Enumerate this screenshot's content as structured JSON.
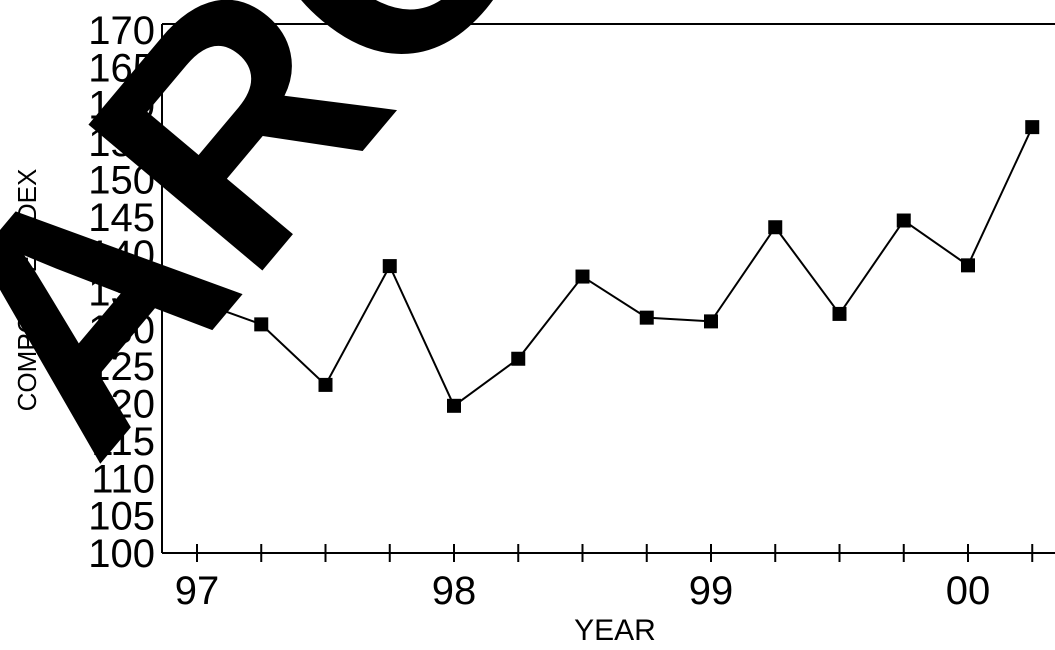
{
  "watermark": {
    "text": "ARCHIVE"
  },
  "chart_data": {
    "type": "line",
    "xlabel": "YEAR",
    "ylabel": "COMPOSITE INDEX",
    "ylim": [
      100,
      170
    ],
    "yticks": [
      100,
      105,
      110,
      115,
      120,
      125,
      130,
      135,
      140,
      145,
      150,
      155,
      160,
      165,
      170
    ],
    "xlim": [
      1997,
      2000.25
    ],
    "x_tick_labels": [
      {
        "value": 1997,
        "label": "97"
      },
      {
        "value": 1998,
        "label": "98"
      },
      {
        "value": 1999,
        "label": "99"
      },
      {
        "value": 2000,
        "label": "00"
      }
    ],
    "x_minor_ticks_per_year": 4,
    "grid": false,
    "marker": "square",
    "color": "#000000",
    "series": [
      {
        "x": [
          1997.0,
          1997.25,
          1997.5,
          1997.75,
          1998.0,
          1998.25,
          1998.5,
          1998.75,
          1999.0,
          1999.25,
          1999.5,
          1999.75,
          2000.0,
          2000.25
        ],
        "values": [
          133.7,
          130.6,
          122.5,
          138.4,
          119.7,
          126.0,
          137.0,
          131.5,
          131.0,
          143.6,
          132.0,
          144.5,
          138.5,
          157.0
        ]
      }
    ]
  }
}
